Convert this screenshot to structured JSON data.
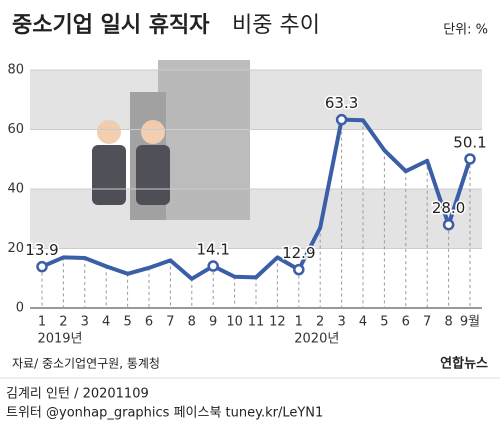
{
  "chart_data": {
    "type": "line",
    "title": "중소기업 일시 휴직자",
    "subtitle": "비중 추이",
    "unit_label": "단위: %",
    "categories": [
      "1",
      "2",
      "3",
      "4",
      "5",
      "6",
      "7",
      "8",
      "9",
      "10",
      "11",
      "12",
      "1",
      "2",
      "3",
      "4",
      "5",
      "6",
      "7",
      "8",
      "9월"
    ],
    "year_labels": [
      {
        "index": 0,
        "label": "2019년"
      },
      {
        "index": 12,
        "label": "2020년"
      }
    ],
    "series": [
      {
        "name": "일시 휴직자 비중",
        "color": "#3a5ea8",
        "values": [
          13.9,
          17.0,
          16.8,
          14.0,
          11.5,
          13.5,
          16.0,
          9.8,
          14.1,
          10.5,
          10.3,
          17.0,
          12.9,
          27.0,
          63.3,
          63.1,
          53.0,
          46.0,
          49.5,
          28.0,
          50.1
        ],
        "value_labels": [
          "13.9",
          null,
          null,
          null,
          null,
          null,
          null,
          null,
          "14.1",
          null,
          null,
          null,
          "12.9",
          null,
          "63.3",
          null,
          null,
          null,
          null,
          "28.0",
          "50.1"
        ]
      }
    ],
    "ylim": [
      0,
      80
    ],
    "yticks": [
      0,
      20,
      40,
      60,
      80
    ],
    "grid": true,
    "source": "자료/ 중소기업연구원, 통계청",
    "logo": "연합뉴스",
    "credit": "김계리 인턴 / 20201109",
    "social": "트위터 @yonhap_graphics  페이스북 tuney.kr/LeYN1"
  }
}
